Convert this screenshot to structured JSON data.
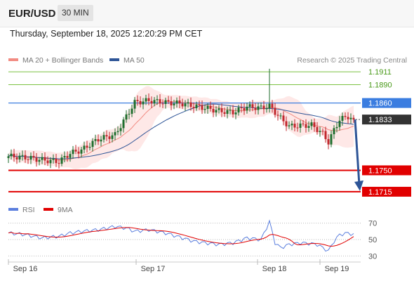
{
  "header": {
    "symbol": "EUR/USD",
    "timeframe": "30 MIN"
  },
  "timestamp": "Thursday, September 18, 2025 12:20:29 PM CET",
  "credit": "Research © 2025 Trading Central",
  "legend": {
    "ma20": {
      "label": "MA 20 + Bollinger Bands",
      "color": "#f28b82"
    },
    "ma50": {
      "label": "MA 50",
      "color": "#2e5597"
    }
  },
  "rsi_legend": {
    "rsi": {
      "label": "RSI",
      "color": "#5b7fde"
    },
    "ma9": {
      "label": "9MA",
      "color": "#e10000"
    }
  },
  "colors": {
    "up": "#1f6e2e",
    "down": "#c1272d",
    "resistance": "#7cc242",
    "pivot": "#3b7de0",
    "support": "#e10000",
    "last": "#333333",
    "arrow": "#2e5597"
  },
  "chart_data": [
    {
      "type": "candlestick",
      "title": "EUR/USD 30 MIN",
      "x_ticks": [
        "Sep 16",
        "Sep 17",
        "Sep 18",
        "Sep 19"
      ],
      "ylim": [
        1.17,
        1.1925
      ],
      "indicators": [
        "MA 20 + Bollinger Bands",
        "MA 50"
      ],
      "levels": [
        {
          "value": "1.1911",
          "kind": "resistance"
        },
        {
          "value": "1.1890",
          "kind": "resistance"
        },
        {
          "value": "1.1860",
          "kind": "pivot"
        },
        {
          "value": "1.1833",
          "kind": "last"
        },
        {
          "value": "1.1750",
          "kind": "support"
        },
        {
          "value": "1.1715",
          "kind": "support"
        }
      ],
      "close_anchors": [
        [
          0,
          1.1773
        ],
        [
          6,
          1.1771
        ],
        [
          12,
          1.1767
        ],
        [
          18,
          1.1764
        ],
        [
          22,
          1.1778
        ],
        [
          26,
          1.1783
        ],
        [
          32,
          1.1801
        ],
        [
          38,
          1.1808
        ],
        [
          42,
          1.1838
        ],
        [
          45,
          1.1861
        ],
        [
          50,
          1.1864
        ],
        [
          56,
          1.1861
        ],
        [
          62,
          1.1859
        ],
        [
          66,
          1.1855
        ],
        [
          70,
          1.1852
        ],
        [
          75,
          1.1847
        ],
        [
          80,
          1.1845
        ],
        [
          85,
          1.1854
        ],
        [
          90,
          1.1852
        ],
        [
          93,
          1.1855
        ],
        [
          95,
          1.1845
        ],
        [
          97,
          1.1835
        ],
        [
          100,
          1.1822
        ],
        [
          104,
          1.1823
        ],
        [
          108,
          1.1824
        ],
        [
          110,
          1.1817
        ],
        [
          112,
          1.181
        ],
        [
          114,
          1.1796
        ],
        [
          116,
          1.1816
        ],
        [
          118,
          1.1833
        ],
        [
          121,
          1.1838
        ],
        [
          123,
          1.1833
        ]
      ],
      "projection": {
        "from": 1.1833,
        "to": 1.1715
      }
    },
    {
      "type": "line",
      "title": "RSI",
      "series": [
        {
          "name": "RSI"
        },
        {
          "name": "9MA"
        }
      ],
      "y_ticks": [
        70,
        50,
        30
      ],
      "ylim": [
        20,
        80
      ],
      "rsi_anchors": [
        [
          0,
          58
        ],
        [
          6,
          56
        ],
        [
          12,
          52
        ],
        [
          18,
          54
        ],
        [
          22,
          58
        ],
        [
          26,
          60
        ],
        [
          32,
          62
        ],
        [
          38,
          66
        ],
        [
          42,
          64
        ],
        [
          45,
          60
        ],
        [
          50,
          62
        ],
        [
          56,
          58
        ],
        [
          62,
          52
        ],
        [
          66,
          48
        ],
        [
          70,
          46
        ],
        [
          75,
          44
        ],
        [
          80,
          46
        ],
        [
          85,
          52
        ],
        [
          90,
          50
        ],
        [
          93,
          72
        ],
        [
          95,
          46
        ],
        [
          97,
          40
        ],
        [
          100,
          44
        ],
        [
          104,
          46
        ],
        [
          108,
          45
        ],
        [
          110,
          44
        ],
        [
          112,
          40
        ],
        [
          114,
          36
        ],
        [
          116,
          48
        ],
        [
          118,
          56
        ],
        [
          121,
          58
        ],
        [
          123,
          56
        ]
      ]
    }
  ]
}
